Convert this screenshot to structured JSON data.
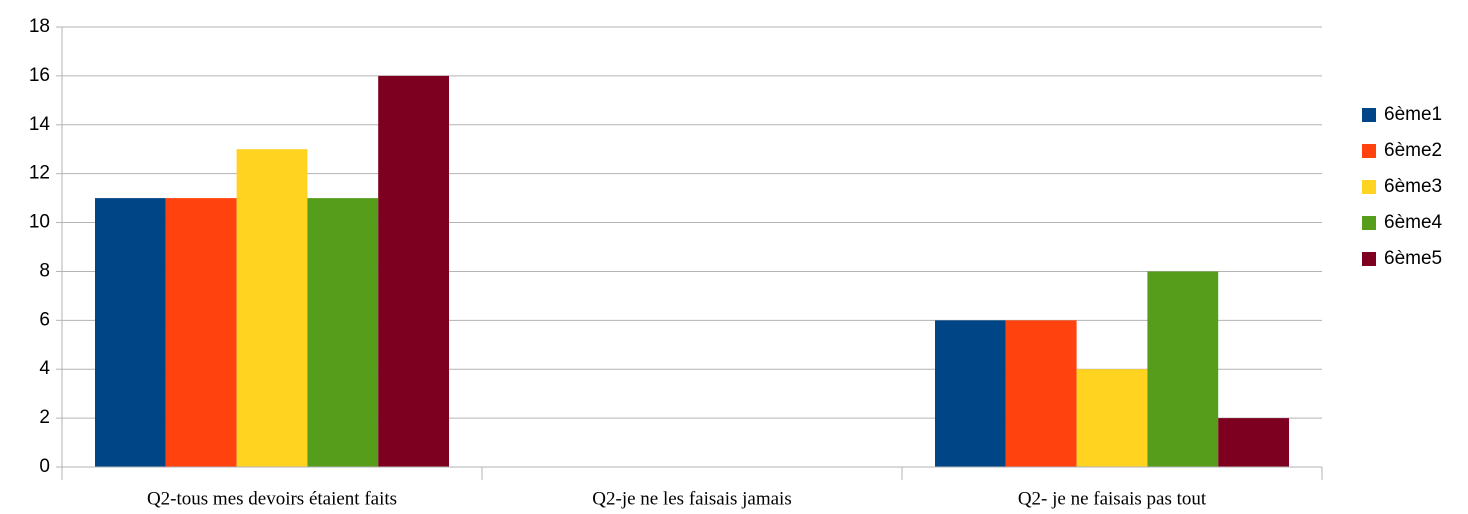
{
  "chart_data": {
    "type": "bar",
    "categories": [
      "Q2-tous mes devoirs étaient faits",
      "Q2-je ne les faisais jamais",
      "Q2- je ne faisais pas tout"
    ],
    "series": [
      {
        "name": "6ème1",
        "color": "#004586",
        "values": [
          11,
          0,
          6
        ]
      },
      {
        "name": "6ème2",
        "color": "#ff420e",
        "values": [
          11,
          0,
          6
        ]
      },
      {
        "name": "6ème3",
        "color": "#ffd320",
        "values": [
          13,
          0,
          4
        ]
      },
      {
        "name": "6ème4",
        "color": "#579d1c",
        "values": [
          11,
          0,
          8
        ]
      },
      {
        "name": "6ème5",
        "color": "#7e0021",
        "values": [
          16,
          0,
          2
        ]
      }
    ],
    "ylim": [
      0,
      18
    ],
    "yticks": [
      0,
      2,
      4,
      6,
      8,
      10,
      12,
      14,
      16,
      18
    ],
    "grid": true,
    "legend": "right"
  }
}
